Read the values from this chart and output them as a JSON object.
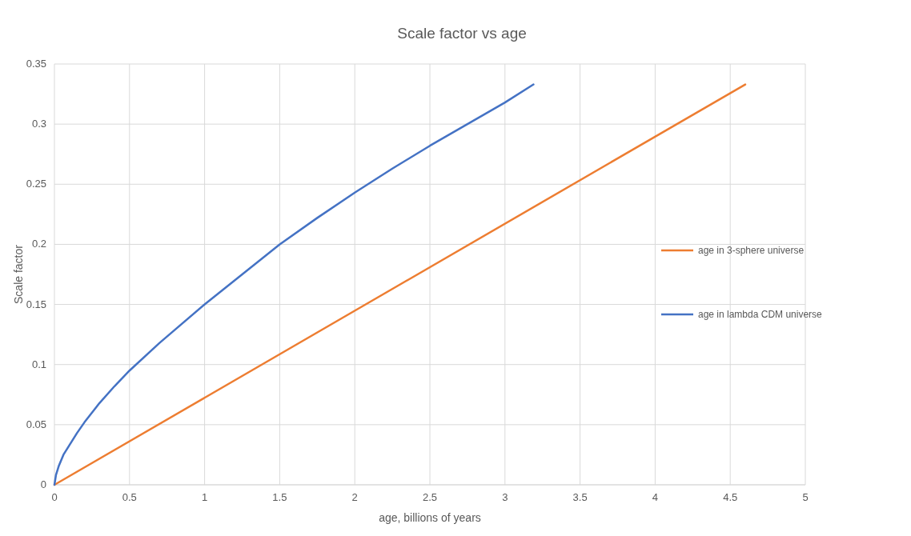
{
  "chart_data": {
    "type": "line",
    "title": "Scale factor vs age",
    "xlabel": "age, billions of years",
    "ylabel": "Scale factor",
    "xlim": [
      0,
      5
    ],
    "xticks": [
      0,
      0.5,
      1,
      1.5,
      2,
      2.5,
      3,
      3.5,
      4,
      4.5,
      5
    ],
    "ylim": [
      0,
      0.35
    ],
    "yticks": [
      0,
      0.05,
      0.1,
      0.15,
      0.2,
      0.25,
      0.3,
      0.35
    ],
    "grid": true,
    "legend": "right",
    "marker": "none",
    "line_style": "solid",
    "series": [
      {
        "name": "age in 3-sphere universe",
        "color": "#ed7d31",
        "x": [
          0,
          4.6
        ],
        "values": [
          0,
          0.333
        ]
      },
      {
        "name": "age in lambda CDM universe",
        "color": "#4472c4",
        "x": [
          0,
          0.01,
          0.03,
          0.06,
          0.1,
          0.15,
          0.2,
          0.3,
          0.4,
          0.5,
          0.7,
          1,
          1.25,
          1.5,
          1.75,
          2,
          2.25,
          2.5,
          2.75,
          3,
          3.19
        ],
        "values": [
          0,
          0.008,
          0.016,
          0.025,
          0.033,
          0.043,
          0.052,
          0.068,
          0.082,
          0.095,
          0.118,
          0.15,
          0.175,
          0.2,
          0.222,
          0.243,
          0.263,
          0.282,
          0.3,
          0.318,
          0.333
        ]
      }
    ]
  }
}
